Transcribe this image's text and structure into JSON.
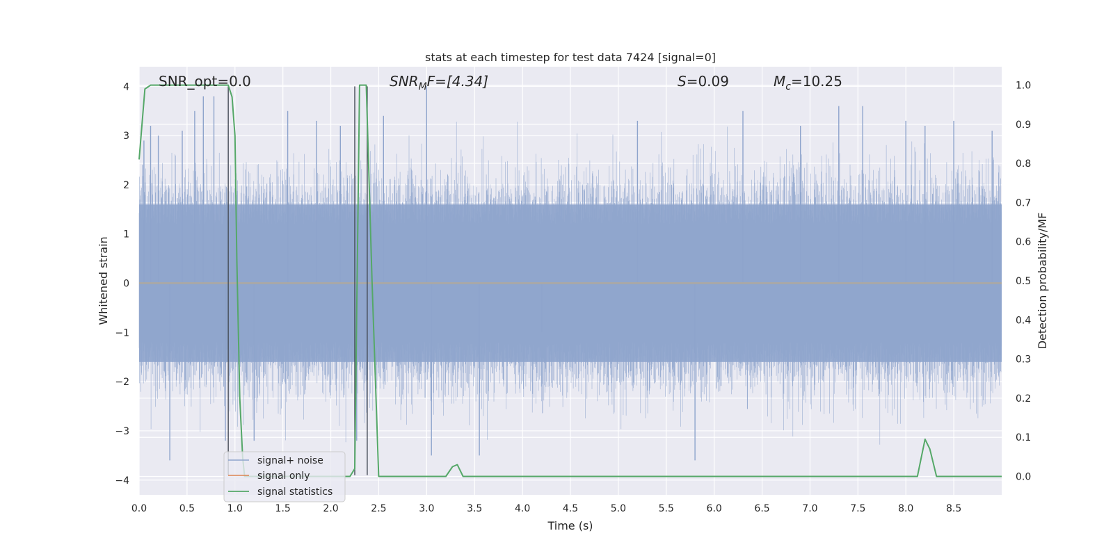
{
  "chart_data": {
    "type": "line",
    "title": "stats at each timestep for test data 7424 [signal=0]",
    "xlabel": "Time (s)",
    "ylabel_left": "Whitened strain",
    "ylabel_right": "Detection probability/MF",
    "xlim": [
      0,
      9
    ],
    "ylim_left": [
      -4.3,
      4.4
    ],
    "ylim_right": [
      -0.047,
      1.047
    ],
    "x_ticks": [
      0.0,
      0.5,
      1.0,
      1.5,
      2.0,
      2.5,
      3.0,
      3.5,
      4.0,
      4.5,
      5.0,
      5.5,
      6.0,
      6.5,
      7.0,
      7.5,
      8.0,
      8.5
    ],
    "x_tick_labels": [
      "0.0",
      "0.5",
      "1.0",
      "1.5",
      "2.0",
      "2.5",
      "3.0",
      "3.5",
      "4.0",
      "4.5",
      "5.0",
      "5.5",
      "6.0",
      "6.5",
      "7.0",
      "7.5",
      "8.0",
      "8.5"
    ],
    "y_ticks_left": [
      -4,
      -3,
      -2,
      -1,
      0,
      1,
      2,
      3,
      4
    ],
    "y_tick_labels_left": [
      "−4",
      "−3",
      "−2",
      "−1",
      "0",
      "1",
      "2",
      "3",
      "4"
    ],
    "y_ticks_right": [
      0.0,
      0.1,
      0.2,
      0.3,
      0.4,
      0.5,
      0.6,
      0.7,
      0.8,
      0.9,
      1.0
    ],
    "y_tick_labels_right": [
      "0.0",
      "0.1",
      "0.2",
      "0.3",
      "0.4",
      "0.5",
      "0.6",
      "0.7",
      "0.8",
      "0.9",
      "1.0"
    ],
    "grid": true,
    "legend_position": "lower-left",
    "annotations": {
      "snr_opt": "SNR_opt=0.0",
      "snr_mf_label": "SNR",
      "snr_mf_sub": "M",
      "snr_mf_rest": "F=[4.34]",
      "s_label": "S",
      "s_value": "=0.09",
      "mc_label": "M",
      "mc_sub": "c",
      "mc_value": "=10.25"
    },
    "vertical_lines_x": [
      0.93,
      2.25,
      2.38
    ],
    "noise_band": {
      "mean": 0.0,
      "max_amplitude": 4.0
    },
    "series": [
      {
        "name": "signal+ noise",
        "color": "#8ea4cc",
        "axis": "left",
        "sample_peaks": [
          [
            0.05,
            2.9
          ],
          [
            0.12,
            3.2
          ],
          [
            0.2,
            3.0
          ],
          [
            0.32,
            -3.6
          ],
          [
            0.45,
            3.1
          ],
          [
            0.58,
            3.5
          ],
          [
            0.67,
            3.8
          ],
          [
            0.78,
            3.8
          ],
          [
            0.9,
            -3.2
          ],
          [
            1.2,
            -3.2
          ],
          [
            1.55,
            3.5
          ],
          [
            1.85,
            3.3
          ],
          [
            2.1,
            3.2
          ],
          [
            2.27,
            -3.2
          ],
          [
            2.55,
            3.4
          ],
          [
            3.0,
            4.0
          ],
          [
            3.05,
            -3.5
          ],
          [
            3.55,
            -3.5
          ],
          [
            4.2,
            -1.0
          ],
          [
            5.2,
            3.3
          ],
          [
            5.8,
            -3.6
          ],
          [
            6.3,
            3.5
          ],
          [
            6.9,
            3.2
          ],
          [
            7.3,
            3.6
          ],
          [
            7.55,
            3.6
          ],
          [
            8.0,
            3.3
          ],
          [
            8.2,
            3.2
          ],
          [
            8.5,
            3.3
          ],
          [
            8.9,
            3.1
          ]
        ]
      },
      {
        "name": "signal only",
        "color": "#dd8452",
        "axis": "left",
        "points": [
          [
            0,
            0
          ],
          [
            9,
            0
          ]
        ]
      },
      {
        "name": "signal statistics",
        "color": "#55a868",
        "axis": "right",
        "points": [
          [
            0.0,
            0.81
          ],
          [
            0.06,
            0.99
          ],
          [
            0.12,
            1.0
          ],
          [
            0.9,
            1.0
          ],
          [
            0.93,
            1.0
          ],
          [
            0.97,
            0.97
          ],
          [
            1.0,
            0.87
          ],
          [
            1.02,
            0.55
          ],
          [
            1.05,
            0.2
          ],
          [
            1.08,
            0.05
          ],
          [
            1.1,
            0.0
          ],
          [
            2.2,
            0.0
          ],
          [
            2.25,
            0.02
          ],
          [
            2.3,
            1.0
          ],
          [
            2.37,
            1.0
          ],
          [
            2.43,
            0.5
          ],
          [
            2.5,
            0.0
          ],
          [
            3.2,
            0.0
          ],
          [
            3.27,
            0.025
          ],
          [
            3.32,
            0.03
          ],
          [
            3.38,
            0.0
          ],
          [
            8.12,
            0.0
          ],
          [
            8.2,
            0.095
          ],
          [
            8.25,
            0.07
          ],
          [
            8.32,
            0.0
          ],
          [
            9.0,
            0.0
          ]
        ]
      }
    ]
  }
}
